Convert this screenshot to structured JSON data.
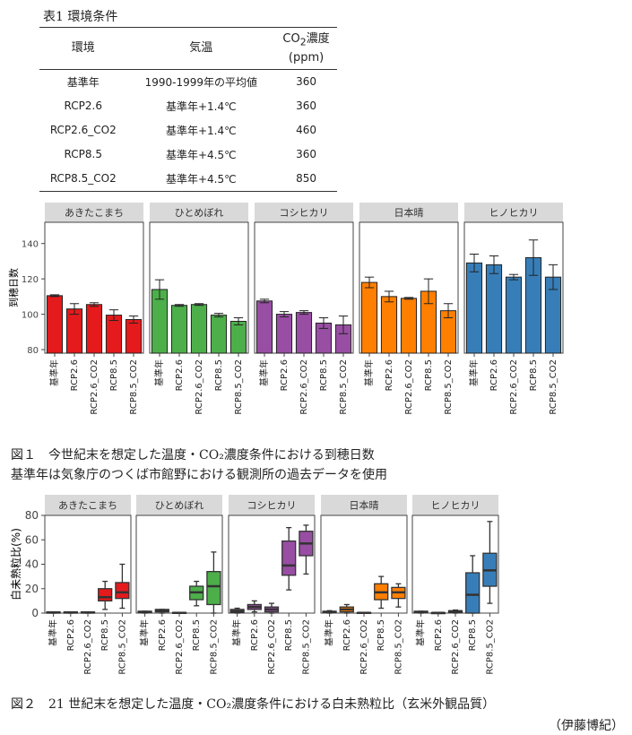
{
  "table": {
    "title": "表1 環境条件",
    "headers": {
      "env": "環境",
      "temp": "気温",
      "co2_a": "CO",
      "co2_sub": "2",
      "co2_b": "濃度",
      "co2_unit": "(ppm)"
    },
    "rows": [
      {
        "env": "基準年",
        "temp": "1990-1999年の平均値",
        "co2": "360"
      },
      {
        "env": "RCP2.6",
        "temp": "基準年+1.4℃",
        "co2": "360"
      },
      {
        "env": "RCP2.6_CO2",
        "temp": "基準年+1.4℃",
        "co2": "460"
      },
      {
        "env": "RCP8.5",
        "temp": "基準年+4.5℃",
        "co2": "360"
      },
      {
        "env": "RCP8.5_CO2",
        "temp": "基準年+4.5℃",
        "co2": "850"
      }
    ]
  },
  "fig1_caption": [
    "図１　今世紀末を想定した温度・CO₂濃度条件における到穂日数",
    "基準年は気象庁のつくば市館野における観測所の過去データを使用"
  ],
  "fig2_caption": "図２　21 世紀末を想定した温度・CO₂濃度条件における白未熟粒比（玄米外観品質）",
  "author": "（伊藤博紀）",
  "chart_data": [
    {
      "type": "bar",
      "ylabel": "到穂日数",
      "ylim": [
        78,
        152
      ],
      "yticks": [
        80,
        100,
        120,
        140
      ],
      "categories": [
        "基準年",
        "RCP2.6",
        "RCP2.6_CO2",
        "RCP8.5",
        "RCP8.5_CO2"
      ],
      "panels": [
        {
          "name": "あきたこまち",
          "color": "#e41a1c",
          "values": [
            110.5,
            103,
            105.5,
            99.5,
            97
          ],
          "err": [
            0.5,
            3,
            1,
            3,
            2
          ]
        },
        {
          "name": "ひとめぼれ",
          "color": "#4daf4a",
          "values": [
            114,
            105,
            105.5,
            99.5,
            96
          ],
          "err": [
            5.5,
            0.5,
            0.5,
            1,
            2
          ]
        },
        {
          "name": "コシヒカリ",
          "color": "#984ea3",
          "values": [
            107.5,
            100,
            101,
            95,
            94
          ],
          "err": [
            1,
            1.5,
            1,
            3,
            5
          ]
        },
        {
          "name": "日本晴",
          "color": "#ff7f00",
          "values": [
            118,
            110,
            109,
            113,
            102
          ],
          "err": [
            3,
            3,
            0.5,
            7,
            4
          ]
        },
        {
          "name": "ヒノヒカリ",
          "color": "#377eb8",
          "values": [
            129,
            128,
            121,
            132,
            121
          ],
          "err": [
            5,
            5,
            1.5,
            10,
            7
          ]
        }
      ]
    },
    {
      "type": "box",
      "ylabel": "白未熟粒比(%)",
      "ylim": [
        0,
        80
      ],
      "yticks": [
        0,
        20,
        40,
        60,
        80
      ],
      "categories": [
        "基準年",
        "RCP2.6",
        "RCP2.6_CO2",
        "RCP8.5",
        "RCP8.5_CO2"
      ],
      "panels": [
        {
          "name": "あきたこまち",
          "color": "#e41a1c",
          "boxes": [
            [
              0,
              0,
              0.5,
              1,
              1
            ],
            [
              0,
              0,
              0.5,
              1,
              1
            ],
            [
              0,
              0,
              0.5,
              1,
              1
            ],
            [
              3,
              10,
              13,
              20,
              26
            ],
            [
              4,
              12,
              17,
              25,
              40
            ]
          ]
        },
        {
          "name": "ひとめぼれ",
          "color": "#4daf4a",
          "boxes": [
            [
              0,
              0.5,
              1,
              1.5,
              1.5
            ],
            [
              0,
              1,
              2,
              3,
              3
            ],
            [
              0,
              0,
              0.2,
              0.5,
              0.5
            ],
            [
              6,
              11,
              17,
              22,
              26
            ],
            [
              0,
              7,
              22,
              34,
              50
            ]
          ]
        },
        {
          "name": "コシヒカリ",
          "color": "#984ea3",
          "boxes": [
            [
              0,
              0.5,
              1.5,
              3,
              4
            ],
            [
              1,
              3,
              5,
              7,
              10
            ],
            [
              0,
              1,
              3,
              5,
              8
            ],
            [
              19,
              31,
              39,
              59,
              70
            ],
            [
              32,
              47,
              57,
              67,
              72
            ]
          ]
        },
        {
          "name": "日本晴",
          "color": "#ff7f00",
          "boxes": [
            [
              0,
              0.5,
              1,
              1.5,
              2
            ],
            [
              0,
              1,
              3,
              5,
              7
            ],
            [
              0,
              0,
              0.2,
              0.5,
              0.5
            ],
            [
              4,
              11,
              17,
              24,
              30
            ],
            [
              5,
              12,
              17,
              21,
              24
            ]
          ]
        },
        {
          "name": "ヒノヒカリ",
          "color": "#377eb8",
          "boxes": [
            [
              0,
              0.5,
              1,
              1.5,
              1.5
            ],
            [
              0,
              0,
              0.2,
              0.3,
              0.3
            ],
            [
              0,
              0.5,
              1,
              2,
              2.5
            ],
            [
              0,
              0,
              15,
              33,
              47
            ],
            [
              8,
              22,
              35,
              49,
              75
            ]
          ]
        }
      ]
    }
  ]
}
